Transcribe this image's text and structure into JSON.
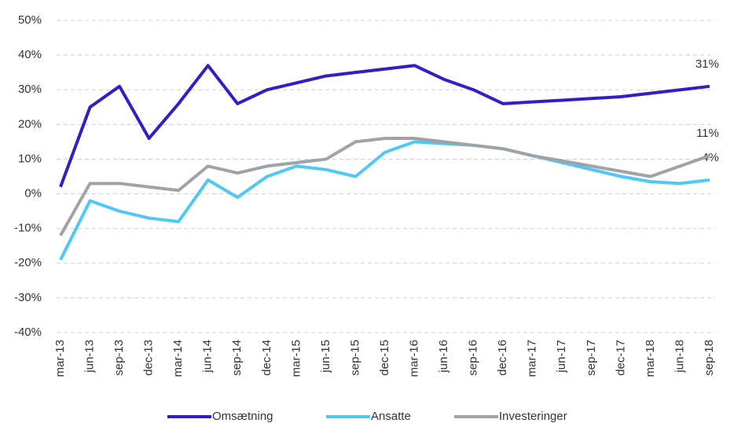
{
  "chart_data": {
    "type": "line",
    "categories": [
      "mar-13",
      "jun-13",
      "sep-13",
      "dec-13",
      "mar-14",
      "jun-14",
      "sep-14",
      "dec-14",
      "mar-15",
      "jun-15",
      "sep-15",
      "dec-15",
      "mar-16",
      "jun-16",
      "sep-16",
      "dec-16",
      "mar-17",
      "jun-17",
      "sep-17",
      "dec-17",
      "mar-18",
      "jun-18",
      "sep-18"
    ],
    "series": [
      {
        "name": "Omsætning",
        "color": "#2f1fc4",
        "values": [
          2,
          25,
          31,
          16,
          26,
          37,
          26,
          30,
          32,
          34,
          35,
          36,
          37,
          33,
          30,
          26,
          26.5,
          27,
          27.5,
          28,
          29,
          30,
          31
        ],
        "value_labels": [
          null,
          null,
          null,
          null,
          null,
          null,
          null,
          null,
          null,
          null,
          null,
          null,
          null,
          null,
          null,
          null,
          null,
          null,
          null,
          null,
          null,
          null,
          "31%"
        ]
      },
      {
        "name": "Ansatte",
        "color": "#4fc8f5",
        "values": [
          -19,
          -2,
          -5,
          -7,
          -8,
          4,
          -1,
          5,
          8,
          7,
          5,
          12,
          15,
          14.5,
          14,
          13,
          11,
          9,
          7,
          5,
          3.5,
          3,
          4
        ],
        "value_labels": [
          null,
          null,
          null,
          null,
          null,
          null,
          null,
          null,
          null,
          null,
          null,
          null,
          null,
          null,
          null,
          null,
          null,
          null,
          null,
          null,
          null,
          null,
          "4%"
        ]
      },
      {
        "name": "Investeringer",
        "color": "#9ea3a8",
        "values": [
          -12,
          3,
          3,
          2,
          1,
          8,
          6,
          8,
          9,
          10,
          15,
          16,
          16,
          15,
          14,
          13,
          11,
          9.5,
          8,
          6.5,
          5,
          8,
          11
        ],
        "value_labels": [
          null,
          null,
          null,
          null,
          null,
          null,
          null,
          null,
          null,
          null,
          null,
          null,
          null,
          null,
          null,
          null,
          null,
          null,
          null,
          null,
          null,
          null,
          "11%"
        ]
      }
    ],
    "ylim": [
      -40,
      50
    ],
    "yticks": [
      {
        "value": -40,
        "label": "-40%"
      },
      {
        "value": -30,
        "label": "-30%"
      },
      {
        "value": -20,
        "label": "-20%"
      },
      {
        "value": -10,
        "label": "-10%"
      },
      {
        "value": 0,
        "label": "0%"
      },
      {
        "value": 10,
        "label": "10%"
      },
      {
        "value": 20,
        "label": "20%"
      },
      {
        "value": 30,
        "label": "30%"
      },
      {
        "value": 40,
        "label": "40%"
      },
      {
        "value": 50,
        "label": "50%"
      }
    ],
    "grid": true,
    "legend": "bottom"
  }
}
